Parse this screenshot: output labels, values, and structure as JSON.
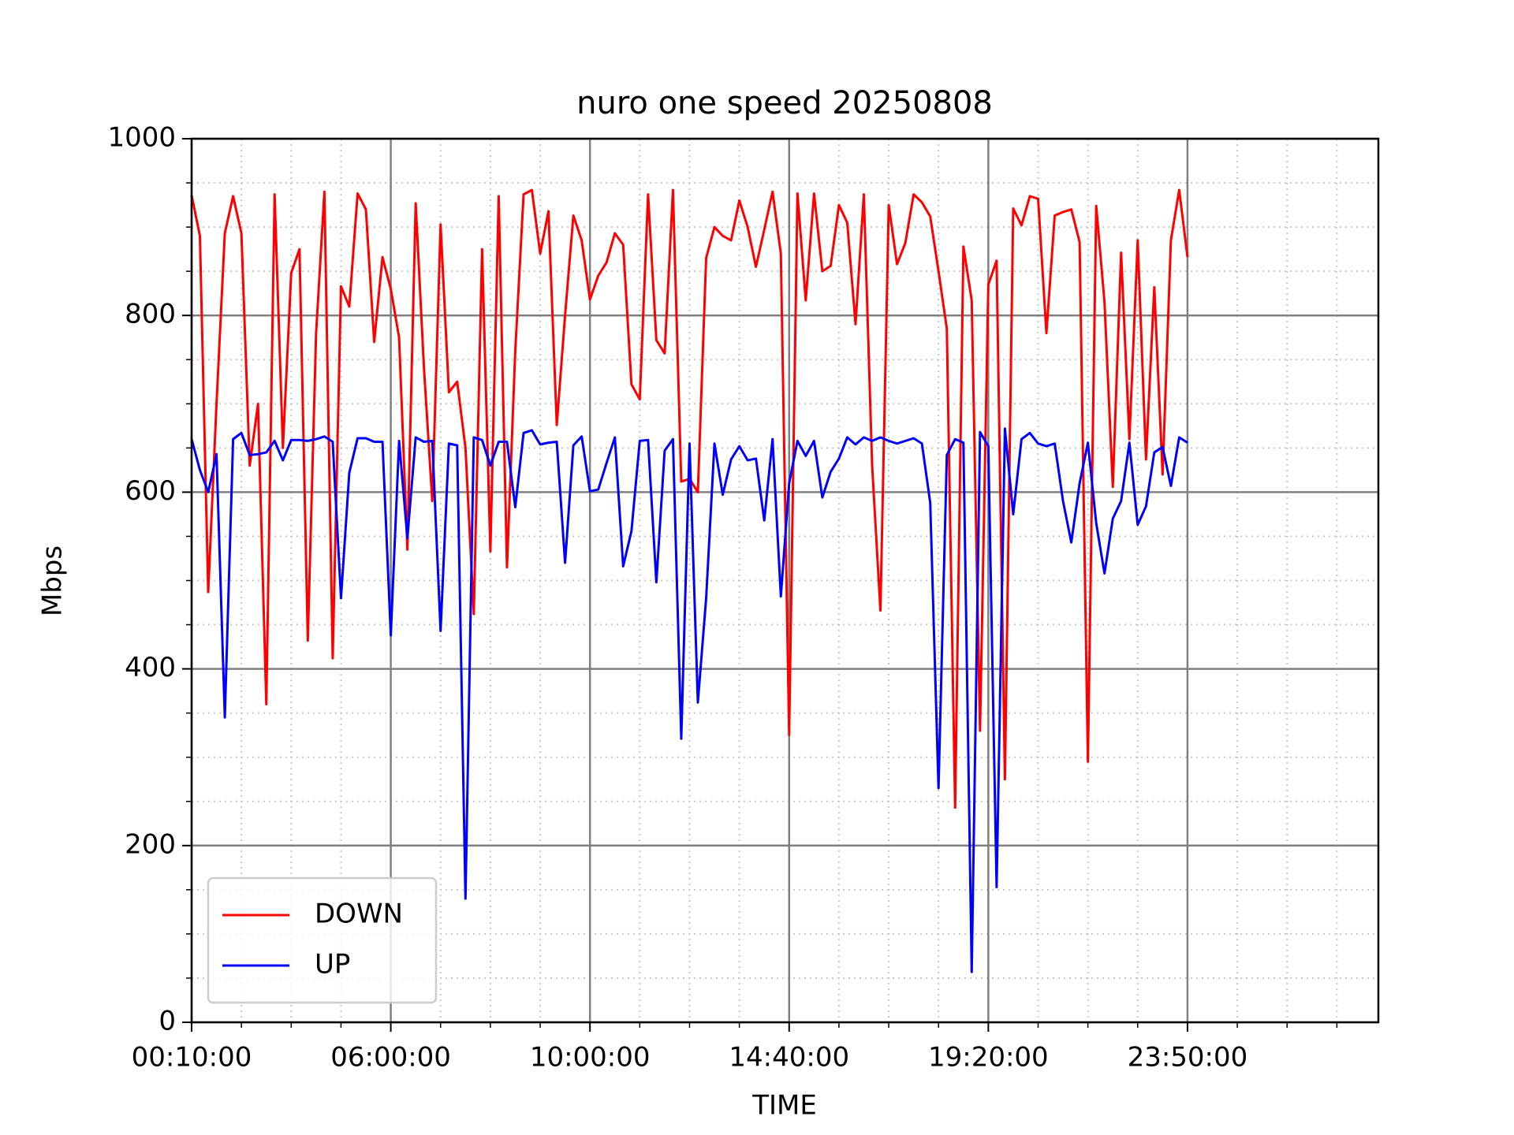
{
  "chart_data": {
    "type": "line",
    "title": "nuro one speed 20250808",
    "xlabel": "TIME",
    "ylabel": "Mbps",
    "xlim": [
      0,
      143
    ],
    "xticks": [
      {
        "value": 0,
        "label": "00:10:00"
      },
      {
        "value": 24,
        "label": "06:00:00"
      },
      {
        "value": 48,
        "label": "10:00:00"
      },
      {
        "value": 72,
        "label": "14:40:00"
      },
      {
        "value": 96,
        "label": "19:20:00"
      },
      {
        "value": 120,
        "label": "23:50:00"
      }
    ],
    "ylim": [
      0,
      1000
    ],
    "yticks": [
      0,
      200,
      400,
      600,
      800,
      1000
    ],
    "grid": true,
    "legend": "lower left",
    "series": [
      {
        "name": "DOWN",
        "color": "#ff0000",
        "values": [
          936,
          890,
          487,
          700,
          893,
          935,
          893,
          630,
          700,
          360,
          937,
          650,
          848,
          875,
          432,
          780,
          940,
          412,
          833,
          810,
          938,
          920,
          770,
          866,
          830,
          775,
          535,
          927,
          740,
          590,
          903,
          713,
          725,
          650,
          462,
          875,
          533,
          935,
          515,
          760,
          937,
          942,
          870,
          918,
          676,
          800,
          913,
          885,
          818,
          845,
          860,
          893,
          880,
          722,
          705,
          937,
          772,
          757,
          942,
          612,
          615,
          600,
          865,
          900,
          890,
          885,
          930,
          900,
          855,
          897,
          940,
          870,
          325,
          938,
          817,
          938,
          850,
          856,
          925,
          905,
          790,
          937,
          630,
          466,
          925,
          858,
          882,
          937,
          928,
          912,
          850,
          785,
          243,
          878,
          817,
          330,
          835,
          862,
          275,
          921,
          902,
          935,
          932,
          780,
          913,
          917,
          920,
          883,
          295,
          924,
          815,
          606,
          871,
          660,
          885,
          637,
          832,
          620,
          885,
          942,
          866
        ]
      },
      {
        "name": "UP",
        "color": "#0000ff",
        "values": [
          660,
          625,
          600,
          643,
          345,
          660,
          667,
          642,
          643,
          645,
          658,
          636,
          659,
          659,
          658,
          660,
          663,
          657,
          480,
          622,
          661,
          661,
          657,
          657,
          438,
          658,
          548,
          662,
          657,
          658,
          443,
          655,
          653,
          140,
          662,
          659,
          630,
          657,
          657,
          583,
          667,
          670,
          654,
          656,
          657,
          520,
          653,
          663,
          601,
          603,
          633,
          662,
          516,
          556,
          658,
          659,
          498,
          647,
          660,
          321,
          655,
          362,
          480,
          655,
          597,
          637,
          652,
          636,
          638,
          568,
          660,
          482,
          610,
          658,
          641,
          658,
          594,
          623,
          638,
          662,
          654,
          662,
          658,
          662,
          658,
          655,
          658,
          661,
          655,
          588,
          265,
          642,
          660,
          656,
          57,
          668,
          652,
          153,
          672,
          575,
          660,
          667,
          655,
          652,
          655,
          590,
          543,
          610,
          656,
          565,
          508,
          570,
          590,
          656,
          563,
          584,
          645,
          651,
          607,
          662,
          656
        ]
      }
    ]
  }
}
